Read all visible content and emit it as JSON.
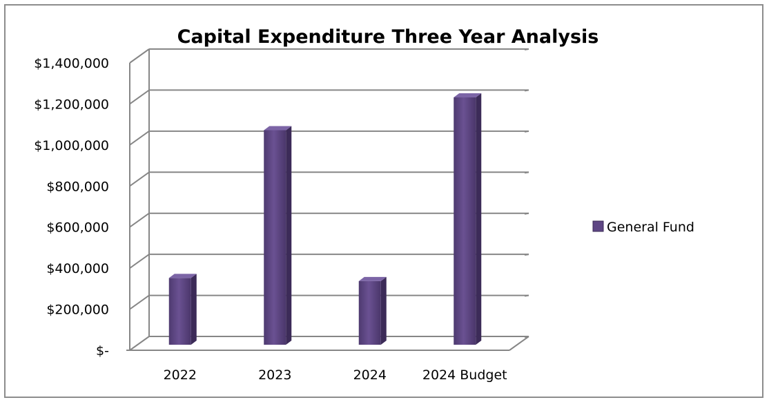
{
  "chart_data": {
    "type": "bar",
    "title": "Capital Expenditure Three Year Analysis",
    "xlabel": "",
    "ylabel": "",
    "categories": [
      "2022",
      "2023",
      "2024",
      "2024 Budget"
    ],
    "series": [
      {
        "name": "General Fund",
        "values": [
          325000,
          1045000,
          310000,
          1205000
        ],
        "color": "#5e4684"
      }
    ],
    "ylim": [
      0,
      1400000
    ],
    "yticks": [
      0,
      200000,
      400000,
      600000,
      800000,
      1000000,
      1200000,
      1400000
    ],
    "ytick_labels": [
      "$-",
      "$200,000",
      "$400,000",
      "$600,000",
      "$800,000",
      "$1,000,000",
      "$1,200,000",
      "$1,400,000"
    ],
    "grid": true,
    "legend_position": "right",
    "style": "3d-column"
  }
}
